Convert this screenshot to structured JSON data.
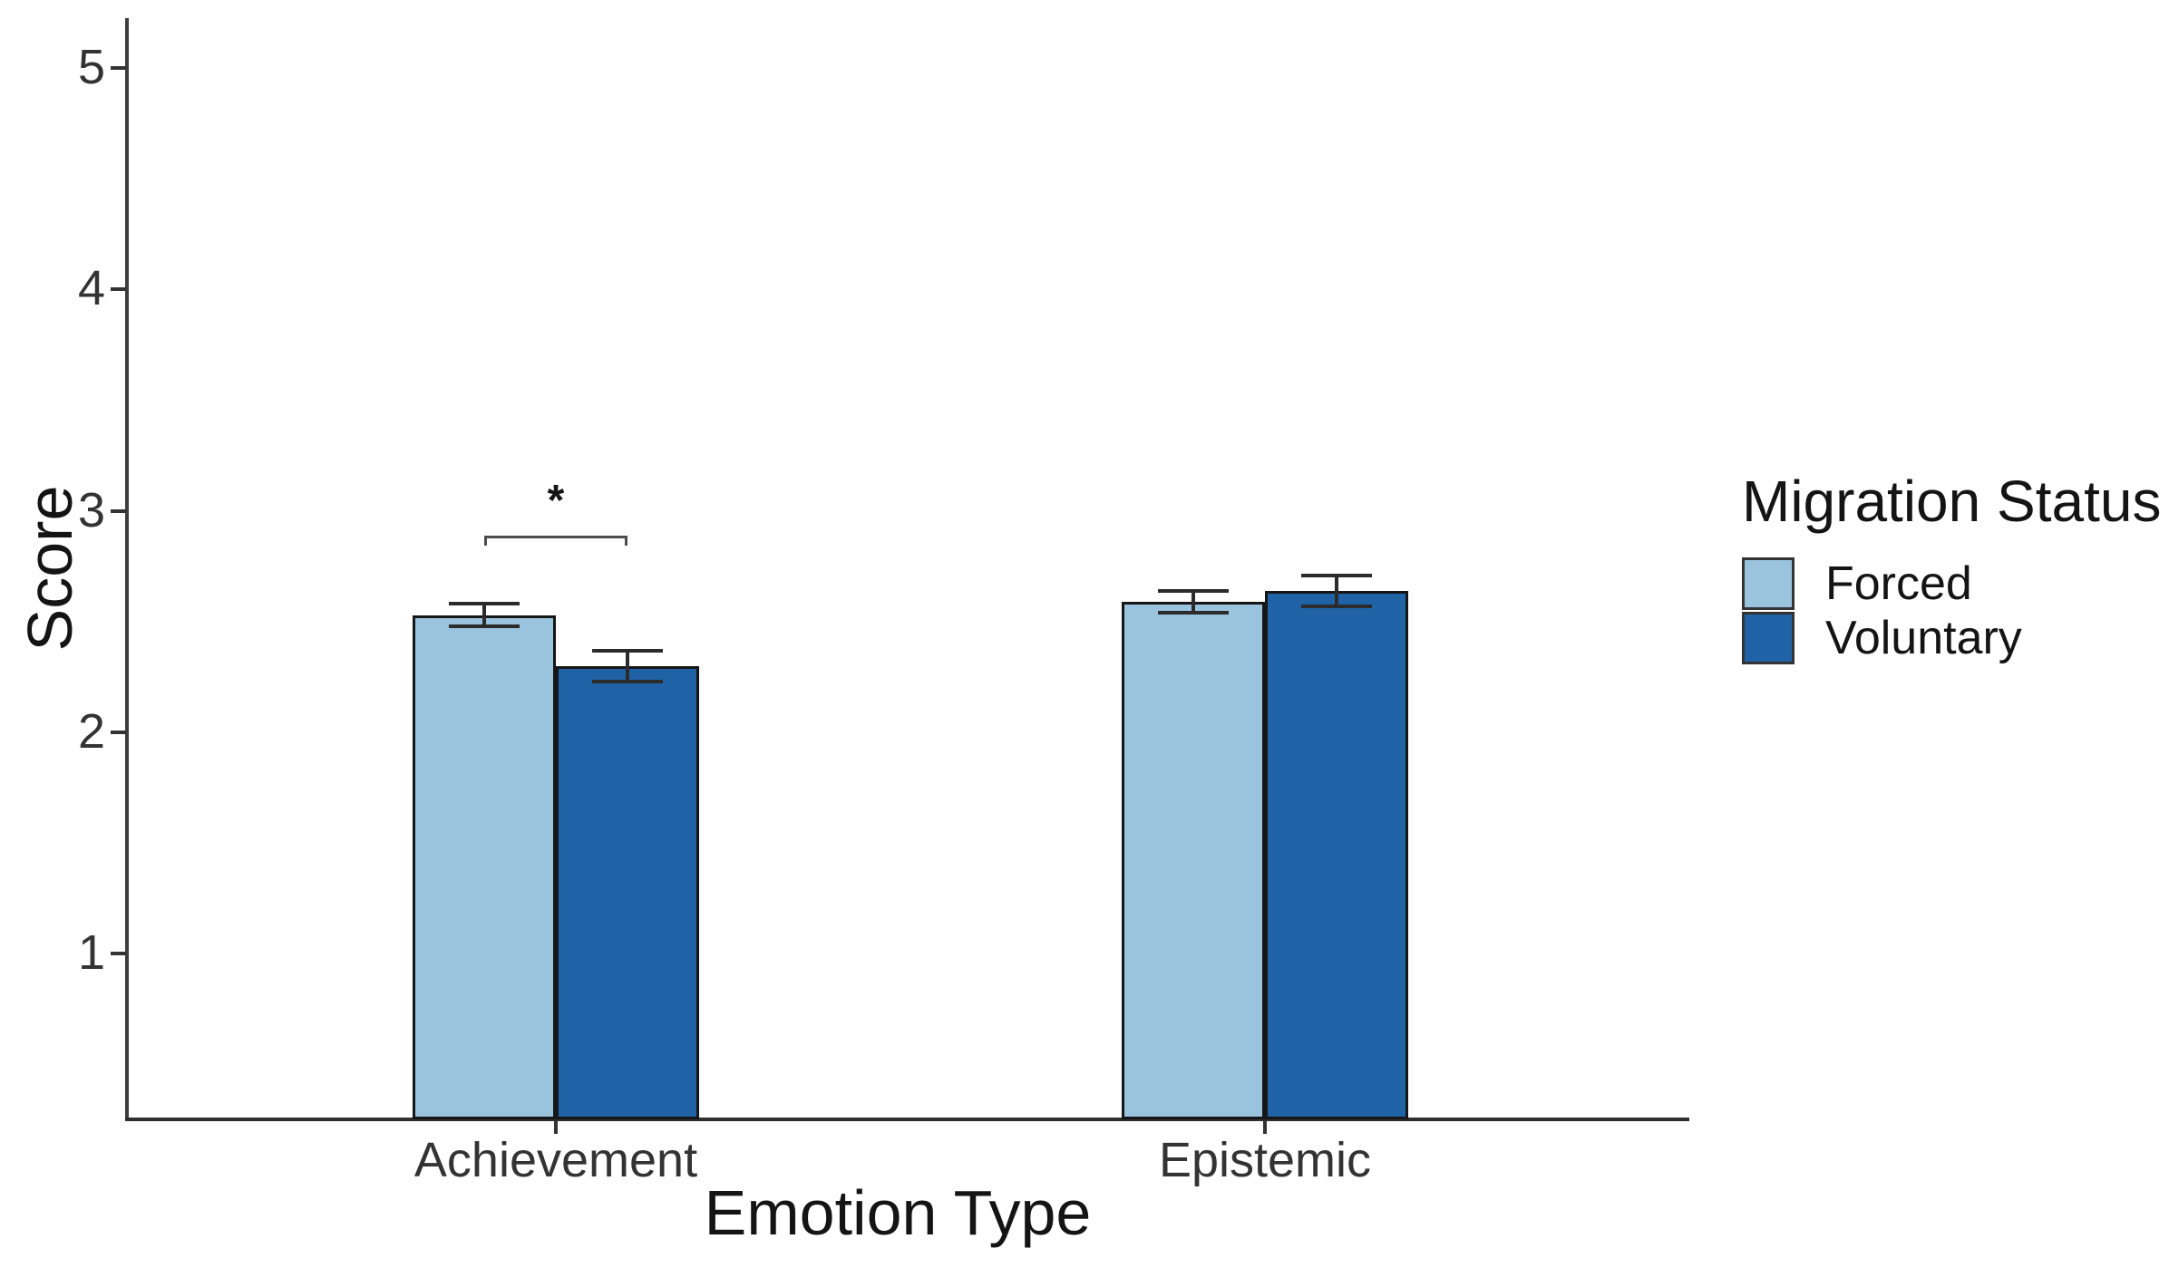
{
  "chart_data": {
    "type": "bar",
    "title": "",
    "xlabel": "Emotion Type",
    "ylabel": "Score",
    "categories": [
      "Achievement",
      "Epistemic"
    ],
    "series": [
      {
        "name": "Forced",
        "color": "#9AC4DE",
        "values": [
          2.53,
          2.59
        ],
        "errors": [
          0.05,
          0.05
        ]
      },
      {
        "name": "Voluntary",
        "color": "#1F63A6",
        "values": [
          2.3,
          2.64
        ],
        "errors": [
          0.07,
          0.07
        ]
      }
    ],
    "yticks": [
      5,
      4,
      3,
      2,
      1
    ],
    "ylim": [
      0,
      5.2
    ],
    "grid": "off",
    "legend": {
      "title": "Migration Status",
      "position": "right"
    },
    "annotation": {
      "type": "significance-bracket",
      "category": "Achievement",
      "between": [
        "Forced",
        "Voluntary"
      ],
      "label": "*",
      "y": 2.89
    }
  }
}
